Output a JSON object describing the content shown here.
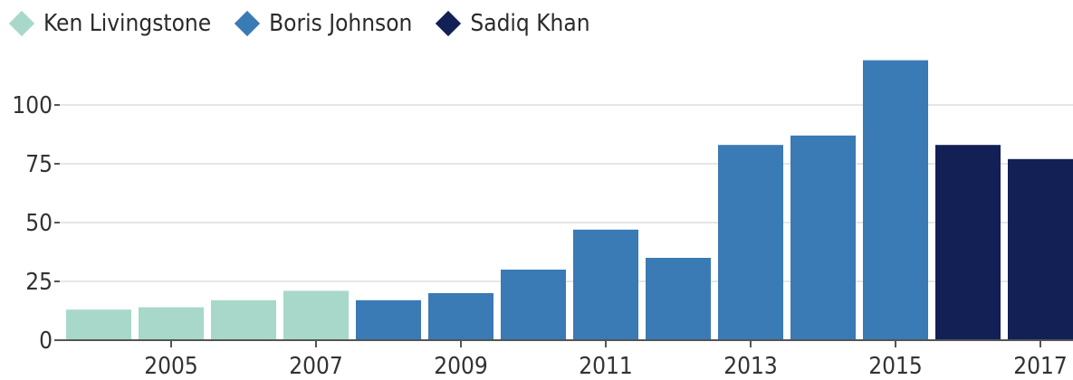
{
  "chart_data": {
    "type": "bar",
    "title": "",
    "xlabel": "",
    "ylabel": "",
    "categories": [
      "2004",
      "2005",
      "2006",
      "2007",
      "2008",
      "2009",
      "2010",
      "2011",
      "2012",
      "2013",
      "2014",
      "2015",
      "2016",
      "2017"
    ],
    "x_tick_labels": [
      "2005",
      "2007",
      "2009",
      "2011",
      "2013",
      "2015",
      "2017"
    ],
    "values": [
      13,
      14,
      17,
      21,
      17,
      20,
      30,
      47,
      35,
      83,
      87,
      119,
      83,
      77
    ],
    "groups": [
      "Ken Livingstone",
      "Ken Livingstone",
      "Ken Livingstone",
      "Ken Livingstone",
      "Boris Johnson",
      "Boris Johnson",
      "Boris Johnson",
      "Boris Johnson",
      "Boris Johnson",
      "Boris Johnson",
      "Boris Johnson",
      "Boris Johnson",
      "Sadiq Khan",
      "Sadiq Khan"
    ],
    "ylim": [
      0,
      125
    ],
    "yticks": [
      0,
      25,
      50,
      75,
      100
    ],
    "grid": true,
    "legend": {
      "placement": "top-left",
      "entries": [
        {
          "name": "Ken Livingstone",
          "color": "#a8d8c9"
        },
        {
          "name": "Boris Johnson",
          "color": "#3a7ab5"
        },
        {
          "name": "Sadiq Khan",
          "color": "#132055"
        }
      ]
    }
  },
  "colors": {
    "grid": "#e6e6e6",
    "axis": "#555555",
    "text": "#333333"
  }
}
